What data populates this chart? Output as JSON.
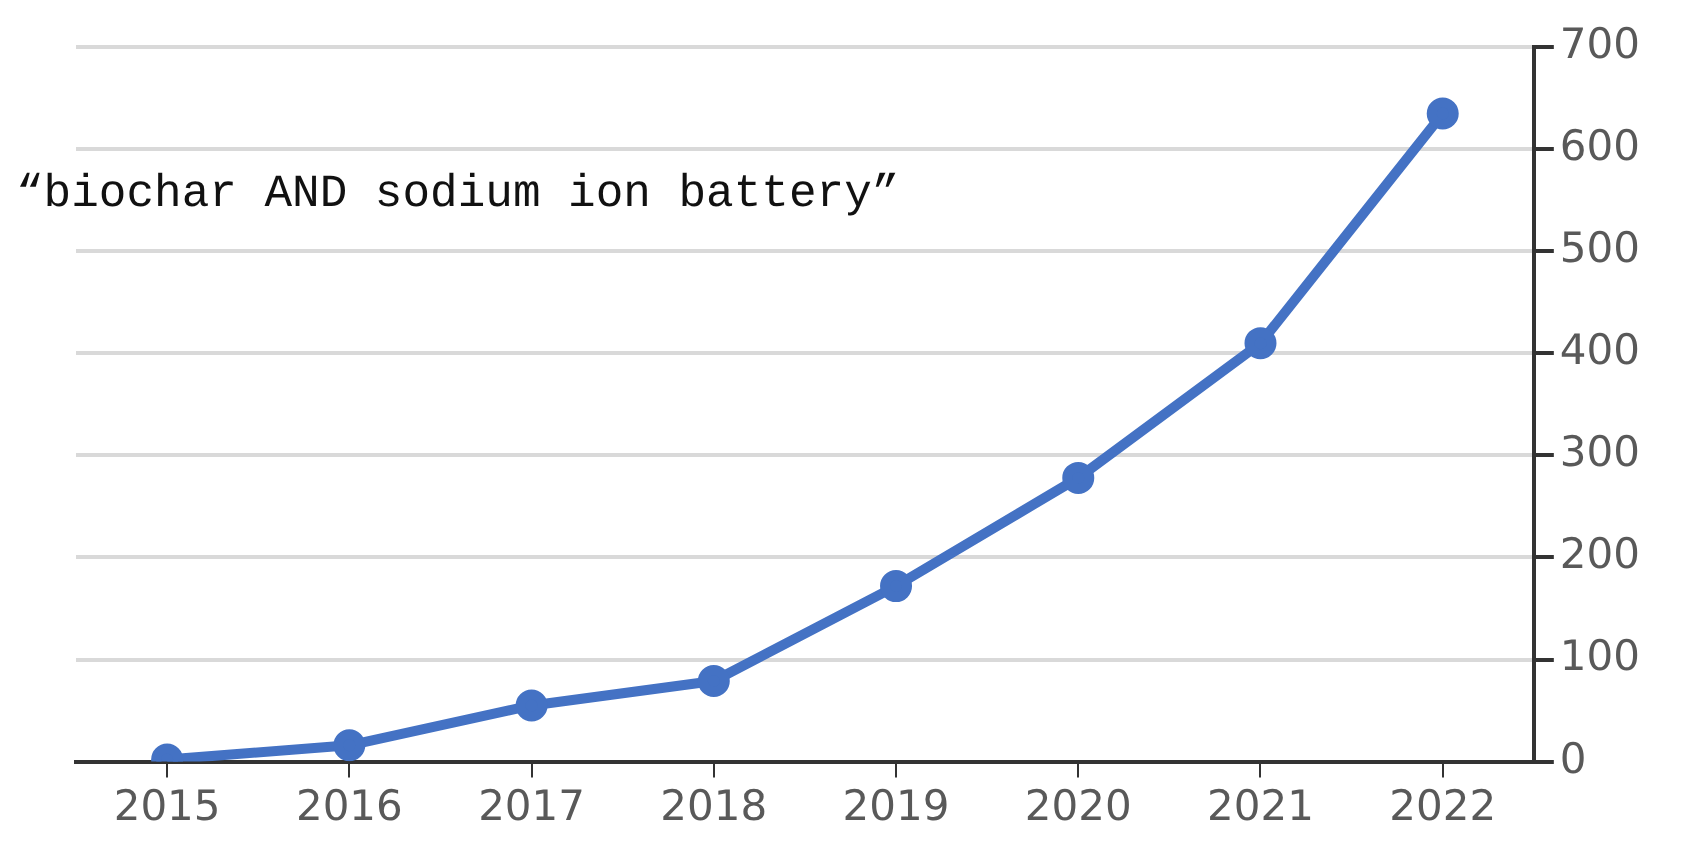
{
  "chart_data": {
    "type": "line",
    "title": "“biochar AND sodium ion battery”",
    "categories": [
      "2015",
      "2016",
      "2017",
      "2018",
      "2019",
      "2020",
      "2021",
      "2022"
    ],
    "series": [
      {
        "color": "#4472c4",
        "values": [
          2,
          16,
          55,
          79,
          172,
          278,
          410,
          635
        ]
      }
    ],
    "ylim": [
      0,
      700
    ],
    "yticks": [
      0,
      100,
      200,
      300,
      400,
      500,
      600,
      700
    ],
    "grid": "y",
    "legend": false,
    "marker": "circle",
    "line_style": "solid"
  }
}
